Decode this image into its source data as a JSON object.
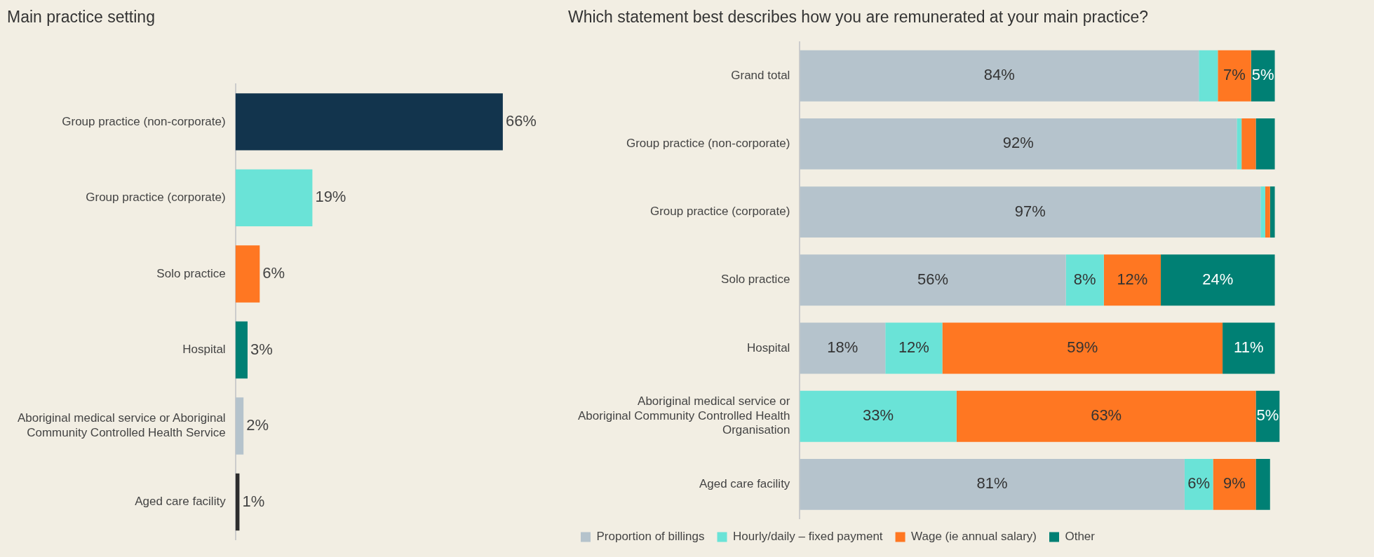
{
  "chart_data": [
    {
      "type": "bar",
      "orientation": "horizontal",
      "title": "Main practice setting",
      "tick_labels": "y",
      "categories": [
        "Group practice (non-corporate)",
        "Group practice (corporate)",
        "Solo practice",
        "Hospital",
        "Aboriginal medical service or Aboriginal Community Controlled Health Service",
        "Aged care facility"
      ],
      "values": [
        66,
        19,
        6,
        3,
        2,
        1
      ],
      "colors": [
        "#12344d",
        "#6ae3d7",
        "#ff7722",
        "#008074",
        "#b5c3cc",
        "#2d2d2d"
      ],
      "value_labels": [
        "66%",
        "19%",
        "6%",
        "3%",
        "2%",
        "1%"
      ]
    },
    {
      "type": "bar",
      "orientation": "horizontal",
      "stacked": true,
      "title": "Which statement best describes how you are remunerated at your main practice?",
      "tick_labels": "y",
      "legend": "bottom",
      "categories": [
        "Grand total",
        "Group practice (non-corporate)",
        "Group practice (corporate)",
        "Solo practice",
        "Hospital",
        "Aboriginal medical service or Aboriginal Community Controlled Health Organisation",
        "Aged care facility"
      ],
      "series": [
        {
          "name": "Proportion of billings",
          "color": "#b5c3cc",
          "values": [
            84,
            92,
            97,
            56,
            18,
            0,
            81
          ],
          "value_labels": [
            "84%",
            "92%",
            "97%",
            "56%",
            "18%",
            null,
            "81%"
          ]
        },
        {
          "name": "Hourly/daily – fixed payment",
          "color": "#6ae3d7",
          "values": [
            4,
            1,
            1,
            8,
            12,
            33,
            6
          ],
          "value_labels": [
            null,
            null,
            null,
            "8%",
            "12%",
            "33%",
            "6%"
          ]
        },
        {
          "name": "Wage (ie annual salary)",
          "color": "#ff7722",
          "values": [
            7,
            3,
            1,
            12,
            59,
            63,
            9
          ],
          "value_labels": [
            "7%",
            null,
            null,
            "12%",
            "59%",
            "63%",
            "9%"
          ]
        },
        {
          "name": "Other",
          "color": "#008074",
          "values": [
            5,
            4,
            1,
            24,
            11,
            5,
            3
          ],
          "value_labels": [
            "5%",
            null,
            null,
            "24%",
            "11%",
            "5%",
            null
          ]
        }
      ]
    }
  ]
}
